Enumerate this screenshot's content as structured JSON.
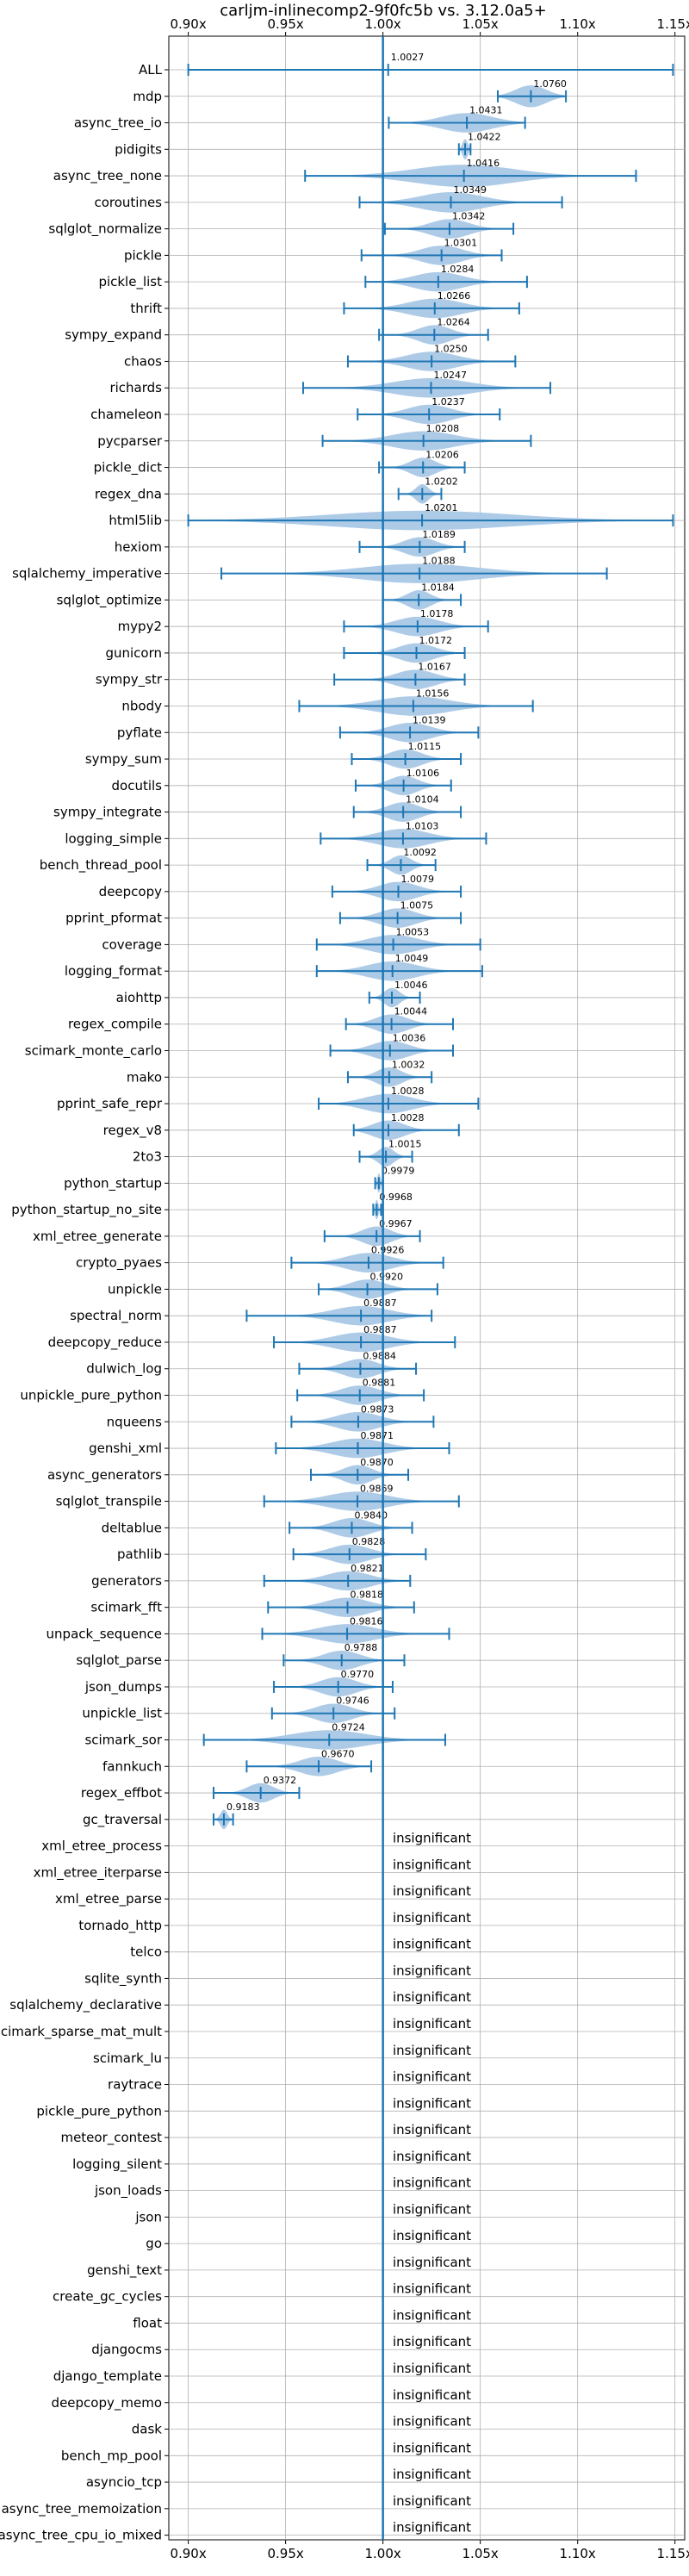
{
  "chart_data": {
    "type": "violin",
    "title": "carljm-inlinecomp2-9f0fc5b vs. 3.12.0a5+",
    "orientation": "horizontal",
    "xlim": [
      0.89,
      1.155
    ],
    "x_ticks": [
      {
        "value": 0.9,
        "label": "0.90x"
      },
      {
        "value": 0.95,
        "label": "0.95x"
      },
      {
        "value": 1.0,
        "label": "1.00x"
      },
      {
        "value": 1.05,
        "label": "1.05x"
      },
      {
        "value": 1.1,
        "label": "1.10x"
      },
      {
        "value": 1.15,
        "label": "1.15x"
      }
    ],
    "reference_line": 1.0,
    "grid": true,
    "colors": {
      "violin": "#a9c8e6",
      "line": "#1f77b4",
      "grid": "#b0b0b0"
    },
    "insignificant_label": "insignificant",
    "benchmarks": [
      {
        "name": "ALL",
        "value": 1.0027,
        "label": "1.0027",
        "min": 0.9,
        "max": 1.149,
        "width": 0.01,
        "spread": 0.08
      },
      {
        "name": "mdp",
        "value": 1.076,
        "label": "1.0760",
        "min": 1.059,
        "max": 1.094,
        "width": 0.45,
        "spread": 0.9
      },
      {
        "name": "async_tree_io",
        "value": 1.0431,
        "label": "1.0431",
        "min": 1.003,
        "max": 1.073,
        "width": 0.4,
        "spread": 0.75
      },
      {
        "name": "pidigits",
        "value": 1.0422,
        "label": "1.0422",
        "min": 1.039,
        "max": 1.045,
        "width": 0.42,
        "spread": 0.9
      },
      {
        "name": "async_tree_none",
        "value": 1.0416,
        "label": "1.0416",
        "min": 0.96,
        "max": 1.13,
        "width": 0.46,
        "spread": 0.6
      },
      {
        "name": "coroutines",
        "value": 1.0349,
        "label": "1.0349",
        "min": 0.988,
        "max": 1.092,
        "width": 0.42,
        "spread": 0.6
      },
      {
        "name": "sqlglot_normalize",
        "value": 1.0342,
        "label": "1.0342",
        "min": 1.001,
        "max": 1.067,
        "width": 0.4,
        "spread": 0.6
      },
      {
        "name": "pickle",
        "value": 1.0301,
        "label": "1.0301",
        "min": 0.989,
        "max": 1.061,
        "width": 0.4,
        "spread": 0.6
      },
      {
        "name": "pickle_list",
        "value": 1.0284,
        "label": "1.0284",
        "min": 0.991,
        "max": 1.074,
        "width": 0.4,
        "spread": 0.6
      },
      {
        "name": "thrift",
        "value": 1.0266,
        "label": "1.0266",
        "min": 0.98,
        "max": 1.07,
        "width": 0.4,
        "spread": 0.6
      },
      {
        "name": "sympy_expand",
        "value": 1.0264,
        "label": "1.0264",
        "min": 0.998,
        "max": 1.054,
        "width": 0.4,
        "spread": 0.6
      },
      {
        "name": "chaos",
        "value": 1.025,
        "label": "1.0250",
        "min": 0.982,
        "max": 1.068,
        "width": 0.4,
        "spread": 0.6
      },
      {
        "name": "richards",
        "value": 1.0247,
        "label": "1.0247",
        "min": 0.959,
        "max": 1.086,
        "width": 0.4,
        "spread": 0.6
      },
      {
        "name": "chameleon",
        "value": 1.0237,
        "label": "1.0237",
        "min": 0.987,
        "max": 1.06,
        "width": 0.4,
        "spread": 0.6
      },
      {
        "name": "pycparser",
        "value": 1.0208,
        "label": "1.0208",
        "min": 0.969,
        "max": 1.076,
        "width": 0.4,
        "spread": 0.6
      },
      {
        "name": "pickle_dict",
        "value": 1.0206,
        "label": "1.0206",
        "min": 0.998,
        "max": 1.042,
        "width": 0.4,
        "spread": 0.6
      },
      {
        "name": "regex_dna",
        "value": 1.0202,
        "label": "1.0202",
        "min": 1.008,
        "max": 1.03,
        "width": 0.4,
        "spread": 0.6
      },
      {
        "name": "html5lib",
        "value": 1.0201,
        "label": "1.0201",
        "min": 0.9,
        "max": 1.149,
        "width": 0.4,
        "spread": 0.75
      },
      {
        "name": "hexiom",
        "value": 1.0189,
        "label": "1.0189",
        "min": 0.988,
        "max": 1.042,
        "width": 0.4,
        "spread": 0.6
      },
      {
        "name": "sqlalchemy_imperative",
        "value": 1.0188,
        "label": "1.0188",
        "min": 0.917,
        "max": 1.115,
        "width": 0.4,
        "spread": 0.6
      },
      {
        "name": "sqlglot_optimize",
        "value": 1.0184,
        "label": "1.0184",
        "min": 1.0,
        "max": 1.04,
        "width": 0.4,
        "spread": 0.6
      },
      {
        "name": "mypy2",
        "value": 1.0178,
        "label": "1.0178",
        "min": 0.98,
        "max": 1.054,
        "width": 0.4,
        "spread": 0.6
      },
      {
        "name": "gunicorn",
        "value": 1.0172,
        "label": "1.0172",
        "min": 0.98,
        "max": 1.042,
        "width": 0.4,
        "spread": 0.6
      },
      {
        "name": "sympy_str",
        "value": 1.0167,
        "label": "1.0167",
        "min": 0.975,
        "max": 1.042,
        "width": 0.4,
        "spread": 0.6
      },
      {
        "name": "nbody",
        "value": 1.0156,
        "label": "1.0156",
        "min": 0.957,
        "max": 1.077,
        "width": 0.4,
        "spread": 0.6
      },
      {
        "name": "pyflate",
        "value": 1.0139,
        "label": "1.0139",
        "min": 0.978,
        "max": 1.049,
        "width": 0.4,
        "spread": 0.6
      },
      {
        "name": "sympy_sum",
        "value": 1.0115,
        "label": "1.0115",
        "min": 0.984,
        "max": 1.04,
        "width": 0.4,
        "spread": 0.6
      },
      {
        "name": "docutils",
        "value": 1.0106,
        "label": "1.0106",
        "min": 0.986,
        "max": 1.035,
        "width": 0.4,
        "spread": 0.6
      },
      {
        "name": "sympy_integrate",
        "value": 1.0104,
        "label": "1.0104",
        "min": 0.985,
        "max": 1.04,
        "width": 0.4,
        "spread": 0.6
      },
      {
        "name": "logging_simple",
        "value": 1.0103,
        "label": "1.0103",
        "min": 0.968,
        "max": 1.053,
        "width": 0.4,
        "spread": 0.6
      },
      {
        "name": "bench_thread_pool",
        "value": 1.0092,
        "label": "1.0092",
        "min": 0.992,
        "max": 1.027,
        "width": 0.4,
        "spread": 0.6
      },
      {
        "name": "deepcopy",
        "value": 1.0079,
        "label": "1.0079",
        "min": 0.974,
        "max": 1.04,
        "width": 0.4,
        "spread": 0.6
      },
      {
        "name": "pprint_pformat",
        "value": 1.0075,
        "label": "1.0075",
        "min": 0.978,
        "max": 1.04,
        "width": 0.4,
        "spread": 0.6
      },
      {
        "name": "coverage",
        "value": 1.0053,
        "label": "1.0053",
        "min": 0.966,
        "max": 1.05,
        "width": 0.4,
        "spread": 0.6
      },
      {
        "name": "logging_format",
        "value": 1.0049,
        "label": "1.0049",
        "min": 0.966,
        "max": 1.051,
        "width": 0.4,
        "spread": 0.6
      },
      {
        "name": "aiohttp",
        "value": 1.0046,
        "label": "1.0046",
        "min": 0.993,
        "max": 1.019,
        "width": 0.4,
        "spread": 0.6
      },
      {
        "name": "regex_compile",
        "value": 1.0044,
        "label": "1.0044",
        "min": 0.981,
        "max": 1.036,
        "width": 0.4,
        "spread": 0.6
      },
      {
        "name": "scimark_monte_carlo",
        "value": 1.0036,
        "label": "1.0036",
        "min": 0.973,
        "max": 1.036,
        "width": 0.4,
        "spread": 0.6
      },
      {
        "name": "mako",
        "value": 1.0032,
        "label": "1.0032",
        "min": 0.982,
        "max": 1.025,
        "width": 0.4,
        "spread": 0.6
      },
      {
        "name": "pprint_safe_repr",
        "value": 1.0028,
        "label": "1.0028",
        "min": 0.967,
        "max": 1.049,
        "width": 0.4,
        "spread": 0.6
      },
      {
        "name": "regex_v8",
        "value": 1.0028,
        "label": "1.0028",
        "min": 0.985,
        "max": 1.039,
        "width": 0.4,
        "spread": 0.6
      },
      {
        "name": "2to3",
        "value": 1.0015,
        "label": "1.0015",
        "min": 0.988,
        "max": 1.015,
        "width": 0.4,
        "spread": 0.6
      },
      {
        "name": "python_startup",
        "value": 0.9979,
        "label": "0.9979",
        "min": 0.996,
        "max": 1.0,
        "width": 0.4,
        "spread": 0.8
      },
      {
        "name": "python_startup_no_site",
        "value": 0.9968,
        "label": "0.9968",
        "min": 0.995,
        "max": 0.999,
        "width": 0.4,
        "spread": 0.8
      },
      {
        "name": "xml_etree_generate",
        "value": 0.9967,
        "label": "0.9967",
        "min": 0.97,
        "max": 1.019,
        "width": 0.4,
        "spread": 0.6
      },
      {
        "name": "crypto_pyaes",
        "value": 0.9926,
        "label": "0.9926",
        "min": 0.953,
        "max": 1.031,
        "width": 0.4,
        "spread": 0.6
      },
      {
        "name": "unpickle",
        "value": 0.992,
        "label": "0.9920",
        "min": 0.967,
        "max": 1.028,
        "width": 0.4,
        "spread": 0.6
      },
      {
        "name": "spectral_norm",
        "value": 0.9887,
        "label": "0.9887",
        "min": 0.93,
        "max": 1.025,
        "width": 0.4,
        "spread": 0.6
      },
      {
        "name": "deepcopy_reduce",
        "value": 0.9887,
        "label": "0.9887",
        "min": 0.944,
        "max": 1.037,
        "width": 0.4,
        "spread": 0.6
      },
      {
        "name": "dulwich_log",
        "value": 0.9884,
        "label": "0.9884",
        "min": 0.957,
        "max": 1.017,
        "width": 0.4,
        "spread": 0.6
      },
      {
        "name": "unpickle_pure_python",
        "value": 0.9881,
        "label": "0.9881",
        "min": 0.956,
        "max": 1.021,
        "width": 0.4,
        "spread": 0.6
      },
      {
        "name": "nqueens",
        "value": 0.9873,
        "label": "0.9873",
        "min": 0.953,
        "max": 1.026,
        "width": 0.4,
        "spread": 0.6
      },
      {
        "name": "genshi_xml",
        "value": 0.9871,
        "label": "0.9871",
        "min": 0.945,
        "max": 1.034,
        "width": 0.4,
        "spread": 0.6
      },
      {
        "name": "async_generators",
        "value": 0.987,
        "label": "0.9870",
        "min": 0.963,
        "max": 1.013,
        "width": 0.4,
        "spread": 0.6
      },
      {
        "name": "sqlglot_transpile",
        "value": 0.9869,
        "label": "0.9869",
        "min": 0.939,
        "max": 1.039,
        "width": 0.4,
        "spread": 0.6
      },
      {
        "name": "deltablue",
        "value": 0.984,
        "label": "0.9840",
        "min": 0.952,
        "max": 1.015,
        "width": 0.4,
        "spread": 0.6
      },
      {
        "name": "pathlib",
        "value": 0.9828,
        "label": "0.9828",
        "min": 0.954,
        "max": 1.022,
        "width": 0.4,
        "spread": 0.6
      },
      {
        "name": "generators",
        "value": 0.9821,
        "label": "0.9821",
        "min": 0.939,
        "max": 1.014,
        "width": 0.4,
        "spread": 0.6
      },
      {
        "name": "scimark_fft",
        "value": 0.9818,
        "label": "0.9818",
        "min": 0.941,
        "max": 1.016,
        "width": 0.4,
        "spread": 0.6
      },
      {
        "name": "unpack_sequence",
        "value": 0.9816,
        "label": "0.9816",
        "min": 0.938,
        "max": 1.034,
        "width": 0.4,
        "spread": 0.6
      },
      {
        "name": "sqlglot_parse",
        "value": 0.9788,
        "label": "0.9788",
        "min": 0.949,
        "max": 1.011,
        "width": 0.4,
        "spread": 0.6
      },
      {
        "name": "json_dumps",
        "value": 0.977,
        "label": "0.9770",
        "min": 0.944,
        "max": 1.005,
        "width": 0.4,
        "spread": 0.6
      },
      {
        "name": "unpickle_list",
        "value": 0.9746,
        "label": "0.9746",
        "min": 0.943,
        "max": 1.006,
        "width": 0.4,
        "spread": 0.6
      },
      {
        "name": "scimark_sor",
        "value": 0.9724,
        "label": "0.9724",
        "min": 0.908,
        "max": 1.032,
        "width": 0.4,
        "spread": 0.6
      },
      {
        "name": "fannkuch",
        "value": 0.967,
        "label": "0.9670",
        "min": 0.93,
        "max": 0.994,
        "width": 0.4,
        "spread": 0.6
      },
      {
        "name": "regex_effbot",
        "value": 0.9372,
        "label": "0.9372",
        "min": 0.913,
        "max": 0.957,
        "width": 0.4,
        "spread": 0.6
      },
      {
        "name": "gc_traversal",
        "value": 0.9183,
        "label": "0.9183",
        "min": 0.913,
        "max": 0.923,
        "width": 0.4,
        "spread": 0.7
      },
      {
        "name": "xml_etree_process",
        "insignificant": true
      },
      {
        "name": "xml_etree_iterparse",
        "insignificant": true
      },
      {
        "name": "xml_etree_parse",
        "insignificant": true
      },
      {
        "name": "tornado_http",
        "insignificant": true
      },
      {
        "name": "telco",
        "insignificant": true
      },
      {
        "name": "sqlite_synth",
        "insignificant": true
      },
      {
        "name": "sqlalchemy_declarative",
        "insignificant": true
      },
      {
        "name": "scimark_sparse_mat_mult",
        "insignificant": true
      },
      {
        "name": "scimark_lu",
        "insignificant": true
      },
      {
        "name": "raytrace",
        "insignificant": true
      },
      {
        "name": "pickle_pure_python",
        "insignificant": true
      },
      {
        "name": "meteor_contest",
        "insignificant": true
      },
      {
        "name": "logging_silent",
        "insignificant": true
      },
      {
        "name": "json_loads",
        "insignificant": true
      },
      {
        "name": "json",
        "insignificant": true
      },
      {
        "name": "go",
        "insignificant": true
      },
      {
        "name": "genshi_text",
        "insignificant": true
      },
      {
        "name": "create_gc_cycles",
        "insignificant": true
      },
      {
        "name": "float",
        "insignificant": true
      },
      {
        "name": "djangocms",
        "insignificant": true
      },
      {
        "name": "django_template",
        "insignificant": true
      },
      {
        "name": "deepcopy_memo",
        "insignificant": true
      },
      {
        "name": "dask",
        "insignificant": true
      },
      {
        "name": "bench_mp_pool",
        "insignificant": true
      },
      {
        "name": "asyncio_tcp",
        "insignificant": true
      },
      {
        "name": "async_tree_memoization",
        "insignificant": true
      },
      {
        "name": "async_tree_cpu_io_mixed",
        "insignificant": true
      }
    ]
  }
}
